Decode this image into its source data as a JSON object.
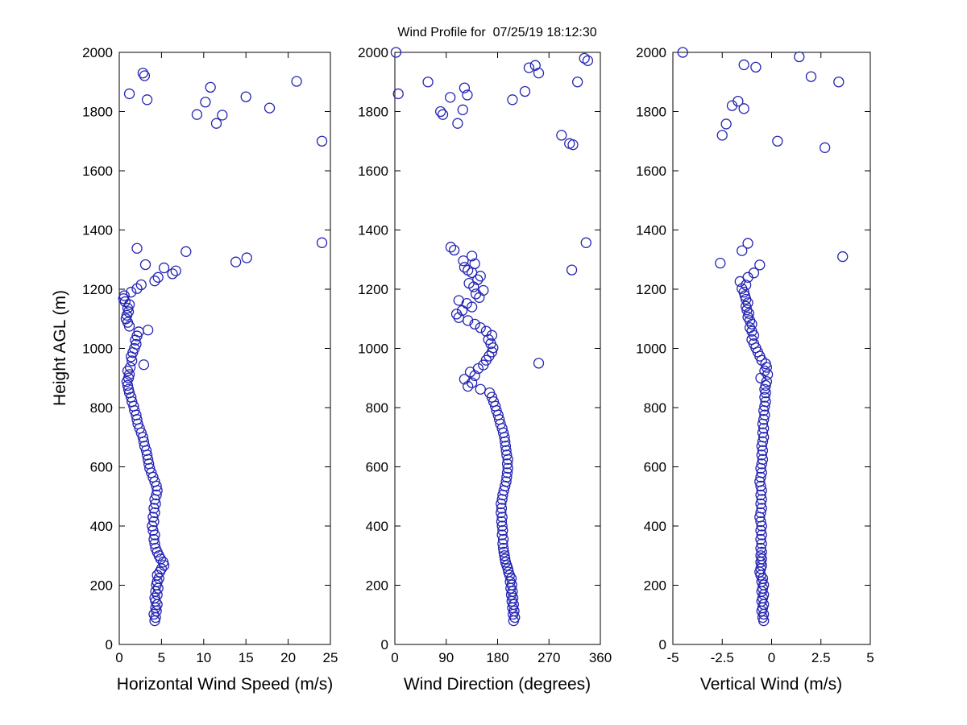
{
  "figure": {
    "title": "Wind Profile for  07/25/19 18:12:30",
    "ylabel": "Height AGL (m)",
    "background": "#ffffff",
    "axis_color": "#000000",
    "marker_color": "#2424b4"
  },
  "chart_data": [
    {
      "type": "scatter",
      "name": "horizontal-wind-speed",
      "xlabel": "Horizontal Wind Speed (m/s)",
      "ylabel": "Height AGL (m)",
      "xlim": [
        0,
        25
      ],
      "ylim": [
        0,
        2000
      ],
      "xticks": [
        0,
        5,
        10,
        15,
        20,
        25
      ],
      "yticks": [
        0,
        200,
        400,
        600,
        800,
        1000,
        1200,
        1400,
        1600,
        1800,
        2000
      ],
      "grid": false,
      "legend": false,
      "points": [
        [
          4.2,
          80
        ],
        [
          4.3,
          91
        ],
        [
          4.1,
          102
        ],
        [
          4.4,
          113
        ],
        [
          4.3,
          124
        ],
        [
          4.5,
          135
        ],
        [
          4.3,
          146
        ],
        [
          4.2,
          157
        ],
        [
          4.5,
          168
        ],
        [
          4.3,
          179
        ],
        [
          4.6,
          190
        ],
        [
          4.4,
          201
        ],
        [
          4.5,
          212
        ],
        [
          4.7,
          223
        ],
        [
          4.5,
          234
        ],
        [
          4.8,
          245
        ],
        [
          5.0,
          256
        ],
        [
          5.3,
          267
        ],
        [
          5.2,
          278
        ],
        [
          4.9,
          289
        ],
        [
          4.7,
          300
        ],
        [
          4.5,
          312
        ],
        [
          4.3,
          325
        ],
        [
          4.2,
          340
        ],
        [
          4.1,
          355
        ],
        [
          4.2,
          370
        ],
        [
          4.0,
          385
        ],
        [
          3.9,
          400
        ],
        [
          4.1,
          415
        ],
        [
          4.0,
          430
        ],
        [
          4.2,
          445
        ],
        [
          4.1,
          460
        ],
        [
          4.3,
          475
        ],
        [
          4.2,
          490
        ],
        [
          4.4,
          505
        ],
        [
          4.5,
          520
        ],
        [
          4.4,
          535
        ],
        [
          4.2,
          550
        ],
        [
          4.0,
          565
        ],
        [
          3.8,
          580
        ],
        [
          3.6,
          595
        ],
        [
          3.5,
          610
        ],
        [
          3.4,
          625
        ],
        [
          3.3,
          640
        ],
        [
          3.2,
          655
        ],
        [
          3.0,
          670
        ],
        [
          2.9,
          685
        ],
        [
          2.8,
          700
        ],
        [
          2.6,
          715
        ],
        [
          2.4,
          730
        ],
        [
          2.2,
          745
        ],
        [
          2.1,
          760
        ],
        [
          2.0,
          775
        ],
        [
          1.8,
          790
        ],
        [
          1.7,
          805
        ],
        [
          1.5,
          820
        ],
        [
          1.4,
          835
        ],
        [
          1.2,
          850
        ],
        [
          1.1,
          862
        ],
        [
          1.0,
          875
        ],
        [
          0.9,
          888
        ],
        [
          1.1,
          900
        ],
        [
          1.2,
          912
        ],
        [
          1.0,
          924
        ],
        [
          1.3,
          936
        ],
        [
          2.9,
          945
        ],
        [
          1.5,
          958
        ],
        [
          1.4,
          972
        ],
        [
          1.6,
          986
        ],
        [
          1.8,
          1000
        ],
        [
          2.0,
          1014
        ],
        [
          1.9,
          1028
        ],
        [
          2.1,
          1042
        ],
        [
          2.3,
          1056
        ],
        [
          3.4,
          1062
        ],
        [
          1.2,
          1075
        ],
        [
          1.0,
          1088
        ],
        [
          0.8,
          1100
        ],
        [
          0.9,
          1112
        ],
        [
          1.1,
          1124
        ],
        [
          1.0,
          1136
        ],
        [
          1.2,
          1148
        ],
        [
          0.7,
          1158
        ],
        [
          0.5,
          1168
        ],
        [
          0.6,
          1178
        ],
        [
          1.4,
          1190
        ],
        [
          2.1,
          1202
        ],
        [
          2.6,
          1215
        ],
        [
          4.2,
          1228
        ],
        [
          4.6,
          1240
        ],
        [
          6.3,
          1252
        ],
        [
          6.7,
          1262
        ],
        [
          5.3,
          1272
        ],
        [
          3.1,
          1283
        ],
        [
          7.9,
          1327
        ],
        [
          2.1,
          1338
        ],
        [
          13.8,
          1292
        ],
        [
          15.1,
          1306
        ],
        [
          24.0,
          1357
        ],
        [
          1.2,
          1860
        ],
        [
          2.8,
          1930
        ],
        [
          3.0,
          1921
        ],
        [
          3.3,
          1840
        ],
        [
          10.8,
          1882
        ],
        [
          10.2,
          1832
        ],
        [
          9.2,
          1790
        ],
        [
          12.2,
          1788
        ],
        [
          11.5,
          1760
        ],
        [
          15.0,
          1850
        ],
        [
          17.8,
          1812
        ],
        [
          21.0,
          1902
        ],
        [
          24.0,
          1700
        ]
      ]
    },
    {
      "type": "scatter",
      "name": "wind-direction",
      "xlabel": "Wind Direction (degrees)",
      "ylabel": "Height AGL (m)",
      "xlim": [
        0,
        360
      ],
      "ylim": [
        0,
        2000
      ],
      "xticks": [
        0,
        90,
        180,
        270,
        360
      ],
      "yticks": [
        0,
        200,
        400,
        600,
        800,
        1000,
        1200,
        1400,
        1600,
        1800,
        2000
      ],
      "grid": false,
      "legend": false,
      "points": [
        [
          208,
          80
        ],
        [
          210,
          91
        ],
        [
          207,
          102
        ],
        [
          209,
          113
        ],
        [
          206,
          124
        ],
        [
          208,
          135
        ],
        [
          205,
          146
        ],
        [
          207,
          157
        ],
        [
          204,
          168
        ],
        [
          206,
          179
        ],
        [
          203,
          190
        ],
        [
          205,
          201
        ],
        [
          202,
          212
        ],
        [
          204,
          223
        ],
        [
          201,
          234
        ],
        [
          199,
          245
        ],
        [
          198,
          256
        ],
        [
          196,
          267
        ],
        [
          194,
          278
        ],
        [
          193,
          289
        ],
        [
          192,
          300
        ],
        [
          191,
          312
        ],
        [
          190,
          325
        ],
        [
          189,
          340
        ],
        [
          190,
          355
        ],
        [
          188,
          370
        ],
        [
          189,
          385
        ],
        [
          188,
          400
        ],
        [
          187,
          415
        ],
        [
          188,
          430
        ],
        [
          186,
          445
        ],
        [
          187,
          460
        ],
        [
          186,
          475
        ],
        [
          188,
          490
        ],
        [
          189,
          505
        ],
        [
          191,
          520
        ],
        [
          193,
          535
        ],
        [
          195,
          550
        ],
        [
          196,
          565
        ],
        [
          197,
          580
        ],
        [
          198,
          595
        ],
        [
          197,
          610
        ],
        [
          198,
          625
        ],
        [
          196,
          640
        ],
        [
          195,
          655
        ],
        [
          194,
          670
        ],
        [
          193,
          685
        ],
        [
          192,
          700
        ],
        [
          190,
          715
        ],
        [
          188,
          730
        ],
        [
          185,
          745
        ],
        [
          183,
          760
        ],
        [
          181,
          775
        ],
        [
          178,
          790
        ],
        [
          176,
          805
        ],
        [
          173,
          820
        ],
        [
          170,
          835
        ],
        [
          166,
          850
        ],
        [
          150,
          862
        ],
        [
          128,
          872
        ],
        [
          135,
          884
        ],
        [
          122,
          896
        ],
        [
          140,
          908
        ],
        [
          132,
          920
        ],
        [
          146,
          932
        ],
        [
          155,
          944
        ],
        [
          252,
          950
        ],
        [
          160,
          960
        ],
        [
          165,
          974
        ],
        [
          170,
          988
        ],
        [
          172,
          1002
        ],
        [
          168,
          1016
        ],
        [
          164,
          1030
        ],
        [
          170,
          1044
        ],
        [
          160,
          1058
        ],
        [
          150,
          1070
        ],
        [
          140,
          1082
        ],
        [
          128,
          1094
        ],
        [
          112,
          1104
        ],
        [
          108,
          1116
        ],
        [
          118,
          1128
        ],
        [
          135,
          1140
        ],
        [
          126,
          1152
        ],
        [
          112,
          1162
        ],
        [
          148,
          1172
        ],
        [
          142,
          1184
        ],
        [
          155,
          1196
        ],
        [
          138,
          1208
        ],
        [
          130,
          1220
        ],
        [
          145,
          1232
        ],
        [
          150,
          1244
        ],
        [
          135,
          1256
        ],
        [
          128,
          1264
        ],
        [
          122,
          1274
        ],
        [
          140,
          1286
        ],
        [
          120,
          1296
        ],
        [
          135,
          1312
        ],
        [
          104,
          1332
        ],
        [
          98,
          1342
        ],
        [
          310,
          1265
        ],
        [
          335,
          1357
        ],
        [
          2,
          2000
        ],
        [
          6,
          1860
        ],
        [
          58,
          1900
        ],
        [
          80,
          1800
        ],
        [
          84,
          1790
        ],
        [
          97,
          1848
        ],
        [
          122,
          1880
        ],
        [
          127,
          1856
        ],
        [
          110,
          1760
        ],
        [
          119,
          1806
        ],
        [
          206,
          1840
        ],
        [
          228,
          1868
        ],
        [
          235,
          1948
        ],
        [
          246,
          1956
        ],
        [
          252,
          1930
        ],
        [
          320,
          1900
        ],
        [
          332,
          1980
        ],
        [
          338,
          1972
        ],
        [
          292,
          1720
        ],
        [
          306,
          1692
        ],
        [
          312,
          1688
        ]
      ]
    },
    {
      "type": "scatter",
      "name": "vertical-wind",
      "xlabel": "Vertical Wind (m/s)",
      "ylabel": "Height AGL (m)",
      "xlim": [
        -5,
        5
      ],
      "ylim": [
        0,
        2000
      ],
      "xticks": [
        -5,
        -2.5,
        0,
        2.5,
        5
      ],
      "yticks": [
        0,
        200,
        400,
        600,
        800,
        1000,
        1200,
        1400,
        1600,
        1800,
        2000
      ],
      "grid": false,
      "legend": false,
      "points": [
        [
          -0.4,
          80
        ],
        [
          -0.45,
          91
        ],
        [
          -0.4,
          102
        ],
        [
          -0.5,
          113
        ],
        [
          -0.45,
          124
        ],
        [
          -0.4,
          135
        ],
        [
          -0.5,
          146
        ],
        [
          -0.45,
          157
        ],
        [
          -0.4,
          168
        ],
        [
          -0.5,
          179
        ],
        [
          -0.45,
          190
        ],
        [
          -0.4,
          201
        ],
        [
          -0.5,
          212
        ],
        [
          -0.45,
          223
        ],
        [
          -0.55,
          234
        ],
        [
          -0.6,
          245
        ],
        [
          -0.55,
          256
        ],
        [
          -0.5,
          267
        ],
        [
          -0.55,
          278
        ],
        [
          -0.5,
          289
        ],
        [
          -0.55,
          300
        ],
        [
          -0.5,
          312
        ],
        [
          -0.55,
          325
        ],
        [
          -0.5,
          340
        ],
        [
          -0.55,
          355
        ],
        [
          -0.5,
          370
        ],
        [
          -0.55,
          385
        ],
        [
          -0.5,
          400
        ],
        [
          -0.55,
          415
        ],
        [
          -0.6,
          430
        ],
        [
          -0.55,
          445
        ],
        [
          -0.5,
          460
        ],
        [
          -0.55,
          475
        ],
        [
          -0.5,
          490
        ],
        [
          -0.55,
          505
        ],
        [
          -0.5,
          520
        ],
        [
          -0.55,
          535
        ],
        [
          -0.6,
          550
        ],
        [
          -0.55,
          565
        ],
        [
          -0.5,
          580
        ],
        [
          -0.55,
          595
        ],
        [
          -0.5,
          610
        ],
        [
          -0.45,
          625
        ],
        [
          -0.5,
          640
        ],
        [
          -0.45,
          655
        ],
        [
          -0.5,
          670
        ],
        [
          -0.45,
          685
        ],
        [
          -0.4,
          700
        ],
        [
          -0.45,
          715
        ],
        [
          -0.4,
          730
        ],
        [
          -0.45,
          745
        ],
        [
          -0.4,
          760
        ],
        [
          -0.35,
          775
        ],
        [
          -0.4,
          790
        ],
        [
          -0.35,
          805
        ],
        [
          -0.3,
          820
        ],
        [
          -0.35,
          835
        ],
        [
          -0.3,
          850
        ],
        [
          -0.35,
          862
        ],
        [
          -0.3,
          875
        ],
        [
          -0.25,
          888
        ],
        [
          -0.55,
          900
        ],
        [
          -0.2,
          912
        ],
        [
          -0.35,
          924
        ],
        [
          -0.25,
          936
        ],
        [
          -0.3,
          948
        ],
        [
          -0.5,
          960
        ],
        [
          -0.6,
          974
        ],
        [
          -0.7,
          988
        ],
        [
          -0.8,
          1002
        ],
        [
          -0.9,
          1016
        ],
        [
          -1.0,
          1030
        ],
        [
          -0.9,
          1044
        ],
        [
          -1.0,
          1058
        ],
        [
          -1.1,
          1070
        ],
        [
          -1.0,
          1082
        ],
        [
          -1.1,
          1094
        ],
        [
          -1.2,
          1106
        ],
        [
          -1.15,
          1118
        ],
        [
          -1.25,
          1130
        ],
        [
          -1.3,
          1142
        ],
        [
          -1.2,
          1154
        ],
        [
          -1.3,
          1166
        ],
        [
          -1.35,
          1178
        ],
        [
          -1.4,
          1190
        ],
        [
          -1.5,
          1202
        ],
        [
          -1.3,
          1214
        ],
        [
          -1.6,
          1226
        ],
        [
          -1.2,
          1240
        ],
        [
          -0.9,
          1255
        ],
        [
          -0.6,
          1282
        ],
        [
          -2.6,
          1288
        ],
        [
          -1.5,
          1330
        ],
        [
          -1.2,
          1355
        ],
        [
          3.6,
          1310
        ],
        [
          -4.5,
          2000
        ],
        [
          -1.4,
          1958
        ],
        [
          -0.8,
          1950
        ],
        [
          1.4,
          1985
        ],
        [
          2.0,
          1918
        ],
        [
          3.4,
          1900
        ],
        [
          -2.5,
          1720
        ],
        [
          -2.3,
          1758
        ],
        [
          -2.0,
          1820
        ],
        [
          -1.7,
          1835
        ],
        [
          -1.4,
          1810
        ],
        [
          0.3,
          1700
        ],
        [
          2.7,
          1678
        ]
      ]
    }
  ]
}
